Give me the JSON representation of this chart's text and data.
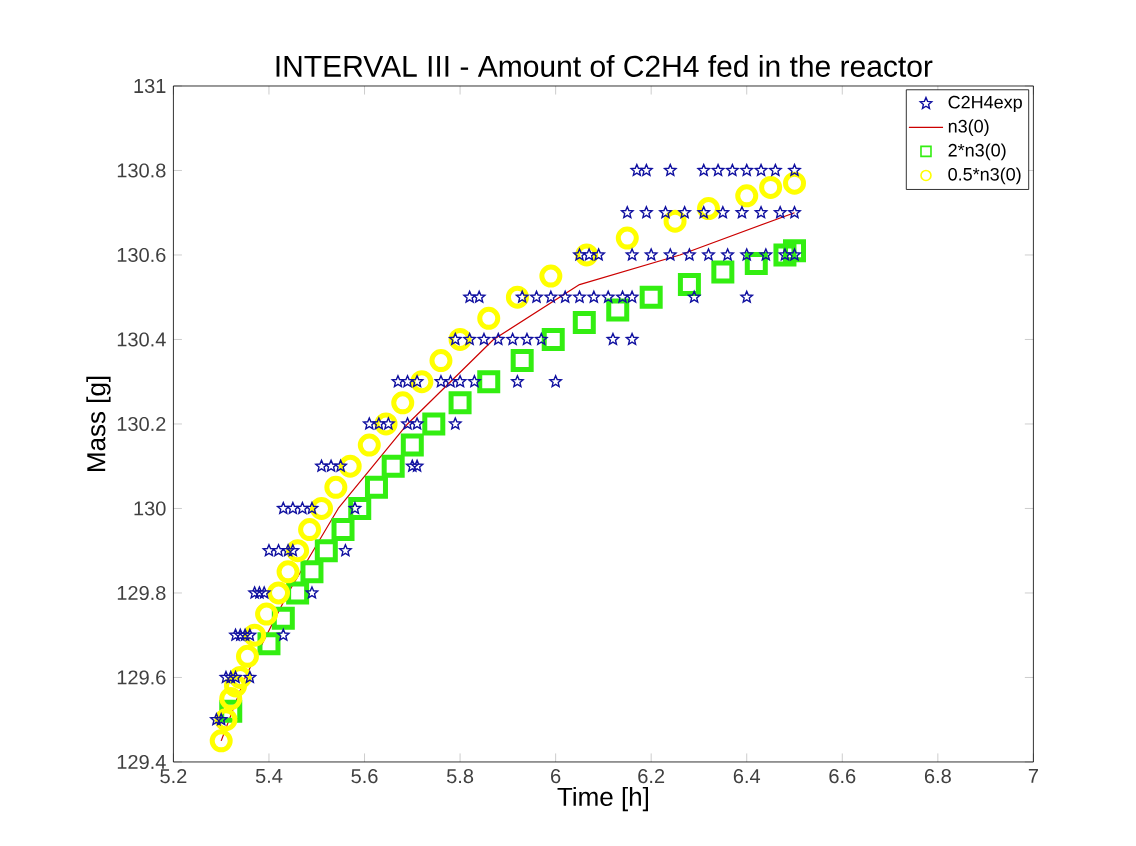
{
  "chart_data": {
    "type": "scatter",
    "title": "INTERVAL III - Amount of C2H4 fed in the reactor",
    "xlabel": "Time [h]",
    "ylabel": "Mass [g]",
    "xlim": [
      5.2,
      7
    ],
    "ylim": [
      129.4,
      131
    ],
    "xticks": [
      5.2,
      5.4,
      5.6,
      5.8,
      6,
      6.2,
      6.4,
      6.6,
      6.8,
      7
    ],
    "yticks": [
      129.4,
      129.6,
      129.8,
      130,
      130.2,
      130.4,
      130.6,
      130.8,
      131
    ],
    "grid": false,
    "legend": "top right",
    "series": [
      {
        "name": "C2H4exp",
        "type": "scatter",
        "marker": "star",
        "color": "#1010a0",
        "x": [
          5.29,
          5.3,
          5.31,
          5.32,
          5.33,
          5.36,
          5.33,
          5.34,
          5.35,
          5.36,
          5.43,
          5.37,
          5.38,
          5.39,
          5.49,
          5.4,
          5.42,
          5.44,
          5.45,
          5.56,
          5.43,
          5.45,
          5.47,
          5.49,
          5.58,
          5.51,
          5.53,
          5.55,
          5.7,
          5.71,
          5.61,
          5.63,
          5.65,
          5.69,
          5.71,
          5.79,
          5.67,
          5.69,
          5.71,
          5.76,
          5.78,
          5.8,
          5.83,
          5.92,
          6.0,
          5.79,
          5.82,
          5.85,
          5.88,
          5.91,
          5.94,
          5.97,
          6.12,
          6.16,
          5.82,
          5.84,
          5.93,
          5.96,
          5.99,
          6.02,
          6.05,
          6.08,
          6.11,
          6.14,
          6.16,
          6.29,
          6.4,
          6.05,
          6.07,
          6.09,
          6.16,
          6.2,
          6.24,
          6.28,
          6.32,
          6.36,
          6.4,
          6.44,
          6.48,
          6.5,
          6.15,
          6.19,
          6.23,
          6.27,
          6.31,
          6.35,
          6.39,
          6.43,
          6.47,
          6.5,
          6.17,
          6.19,
          6.24,
          6.31,
          6.34,
          6.37,
          6.4,
          6.43,
          6.46,
          6.5
        ],
        "values": [
          129.5,
          129.5,
          129.6,
          129.6,
          129.6,
          129.6,
          129.7,
          129.7,
          129.7,
          129.7,
          129.7,
          129.8,
          129.8,
          129.8,
          129.8,
          129.9,
          129.9,
          129.9,
          129.9,
          129.9,
          130.0,
          130.0,
          130.0,
          130.0,
          130.0,
          130.1,
          130.1,
          130.1,
          130.1,
          130.1,
          130.2,
          130.2,
          130.2,
          130.2,
          130.2,
          130.2,
          130.3,
          130.3,
          130.3,
          130.3,
          130.3,
          130.3,
          130.3,
          130.3,
          130.3,
          130.4,
          130.4,
          130.4,
          130.4,
          130.4,
          130.4,
          130.4,
          130.4,
          130.4,
          130.5,
          130.5,
          130.5,
          130.5,
          130.5,
          130.5,
          130.5,
          130.5,
          130.5,
          130.5,
          130.5,
          130.5,
          130.5,
          130.6,
          130.6,
          130.6,
          130.6,
          130.6,
          130.6,
          130.6,
          130.6,
          130.6,
          130.6,
          130.6,
          130.6,
          130.6,
          130.7,
          130.7,
          130.7,
          130.7,
          130.7,
          130.7,
          130.7,
          130.7,
          130.7,
          130.7,
          130.8,
          130.8,
          130.8,
          130.8,
          130.8,
          130.8,
          130.8,
          130.8,
          130.8,
          130.8
        ]
      },
      {
        "name": "n3(0)",
        "type": "line",
        "line_style": "solid",
        "color": "#cc0000",
        "x": [
          5.3,
          5.35,
          5.44,
          5.545,
          5.69,
          5.87,
          6.05,
          6.26,
          6.5
        ],
        "values": [
          129.45,
          129.6,
          129.8,
          130.0,
          130.2,
          130.4,
          130.53,
          130.6,
          130.7
        ]
      },
      {
        "name": "2*n3(0)",
        "type": "scatter",
        "marker": "square",
        "color": "#33ee11",
        "x": [
          5.32,
          5.4,
          5.43,
          5.46,
          5.49,
          5.52,
          5.555,
          5.59,
          5.625,
          5.66,
          5.7,
          5.745,
          5.8,
          5.86,
          5.93,
          5.995,
          6.06,
          6.13,
          6.2,
          6.28,
          6.35,
          6.42,
          6.48,
          6.5
        ],
        "values": [
          129.52,
          129.68,
          129.74,
          129.8,
          129.85,
          129.9,
          129.95,
          130.0,
          130.05,
          130.1,
          130.15,
          130.2,
          130.25,
          130.3,
          130.35,
          130.4,
          130.44,
          130.47,
          130.5,
          130.53,
          130.56,
          130.58,
          130.6,
          130.61
        ]
      },
      {
        "name": "0.5*n3(0)",
        "type": "scatter",
        "marker": "circle",
        "color": "#ffff00",
        "x": [
          5.3,
          5.31,
          5.32,
          5.33,
          5.34,
          5.355,
          5.37,
          5.395,
          5.42,
          5.44,
          5.46,
          5.485,
          5.51,
          5.54,
          5.57,
          5.61,
          5.645,
          5.68,
          5.72,
          5.76,
          5.8,
          5.86,
          5.92,
          5.99,
          6.065,
          6.15,
          6.25,
          6.32,
          6.4,
          6.45,
          6.5
        ],
        "values": [
          129.45,
          129.5,
          129.55,
          129.58,
          129.6,
          129.65,
          129.7,
          129.75,
          129.8,
          129.85,
          129.9,
          129.95,
          130.0,
          130.05,
          130.1,
          130.15,
          130.2,
          130.25,
          130.3,
          130.35,
          130.4,
          130.45,
          130.5,
          130.55,
          130.6,
          130.64,
          130.68,
          130.71,
          130.74,
          130.76,
          130.77
        ]
      }
    ]
  }
}
